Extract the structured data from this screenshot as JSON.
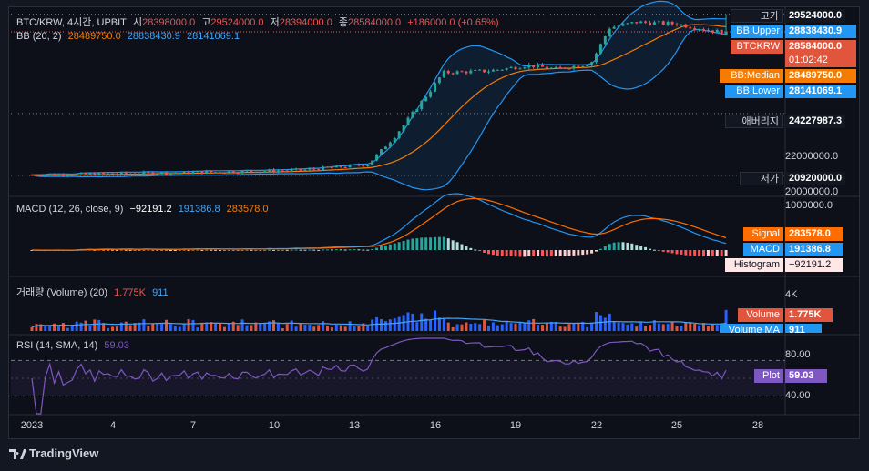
{
  "header": {
    "symbol": "BTC/KRW, 4시간, UPBIT",
    "o_label": "시",
    "o_value": "28398000.0",
    "h_label": "고",
    "h_value": "29524000.0",
    "l_label": "저",
    "l_value": "28394000.0",
    "c_label": "종",
    "c_value": "28584000.0",
    "change": "+186000.0 (+0.65%)"
  },
  "bb_legend": {
    "label": "BB (20, 2)",
    "median": "28489750.0",
    "upper": "28838430.9",
    "lower": "28141069.1"
  },
  "macd_legend": {
    "label": "MACD (12, 26, close, 9)",
    "hist": "−92191.2",
    "macd": "191386.8",
    "signal": "283578.0"
  },
  "vol_legend": {
    "label": "거래량 (Volume) (20)",
    "vol": "1.775K",
    "ma": "911"
  },
  "rsi_legend": {
    "label": "RSI (14, SMA, 14)",
    "value": "59.03"
  },
  "price_axis": {
    "high_tag": "고가",
    "high_value": "29524000.0",
    "bbupper_tag": "BB:Upper",
    "bbupper_value": "28838430.9",
    "symbol_tag": "BTCKRW",
    "last_value": "28584000.0",
    "countdown": "01:02:42",
    "bbmedian_tag": "BB:Median",
    "bbmedian_value": "28489750.0",
    "bblower_tag": "BB:Lower",
    "bblower_value": "28141069.1",
    "avg_tag": "애버리지",
    "avg_value": "24227987.3",
    "tick_22m": "22000000.0",
    "low_tag": "저가",
    "low_value": "20920000.0",
    "tick_20m": "20000000.0"
  },
  "macd_axis": {
    "tick": "1000000.0",
    "signal_tag": "Signal",
    "signal_value": "283578.0",
    "macd_tag": "MACD",
    "macd_value": "191386.8",
    "hist_tag": "Histogram",
    "hist_value": "−92191.2"
  },
  "vol_axis": {
    "tick": "4K",
    "vol_tag": "Volume",
    "vol_value": "1.775K",
    "ma_tag": "Volume MA",
    "ma_value": "911"
  },
  "rsi_axis": {
    "tick_80": "80.00",
    "tick_40": "40.00",
    "plot_tag": "Plot",
    "plot_value": "59.03"
  },
  "x_axis": [
    "2023",
    "4",
    "7",
    "10",
    "13",
    "16",
    "19",
    "22",
    "25",
    "28"
  ],
  "footer": {
    "brand": "TradingView"
  },
  "colors": {
    "up": "#26a69a",
    "down": "#ef5350",
    "bb_basis": "#f57c00",
    "bb_band": "#2196f3",
    "macd": "#2196f3",
    "signal": "#ff6d00",
    "rsi": "#7e57c2",
    "bg": "#131722"
  },
  "chart_data": {
    "type": "candlestick",
    "title": "BTC/KRW, 4시간, UPBIT",
    "x_range": [
      "2023-01-01",
      "2023-01-26"
    ],
    "price_ylim": [
      20000000,
      29700000
    ],
    "price_keypoints": [
      {
        "day": 0.0,
        "close": 20950000
      },
      {
        "day": 5.0,
        "close": 21050000
      },
      {
        "day": 10.0,
        "close": 21200000
      },
      {
        "day": 12.5,
        "close": 21500000
      },
      {
        "day": 13.5,
        "close": 23000000
      },
      {
        "day": 14.8,
        "close": 25400000
      },
      {
        "day": 15.3,
        "close": 26400000
      },
      {
        "day": 17.0,
        "close": 26500000
      },
      {
        "day": 18.5,
        "close": 26800000
      },
      {
        "day": 19.5,
        "close": 26600000
      },
      {
        "day": 20.8,
        "close": 26900000
      },
      {
        "day": 21.5,
        "close": 28800000
      },
      {
        "day": 22.5,
        "close": 29100000
      },
      {
        "day": 24.0,
        "close": 29000000
      },
      {
        "day": 25.5,
        "close": 28600000
      }
    ],
    "bb": {
      "period": 20,
      "mult": 2,
      "basis": 28489750.0,
      "upper": 28838430.9,
      "lower": 28141069.1
    },
    "average": 24227987.3,
    "period_high": 29524000.0,
    "period_low": 20920000.0,
    "macd": {
      "params": [
        12,
        26,
        9
      ],
      "ylim": [
        -500000,
        1100000
      ],
      "macd": 191386.8,
      "signal": 283578.0,
      "histogram": -92191.2
    },
    "volume": {
      "ma_period": 20,
      "ylim": [
        0,
        4300
      ],
      "last": 1775,
      "ma": 911
    },
    "rsi": {
      "params": [
        14,
        14
      ],
      "ylim": [
        10,
        95
      ],
      "upper_band": 70,
      "lower_band": 30,
      "value": 59.03
    }
  }
}
